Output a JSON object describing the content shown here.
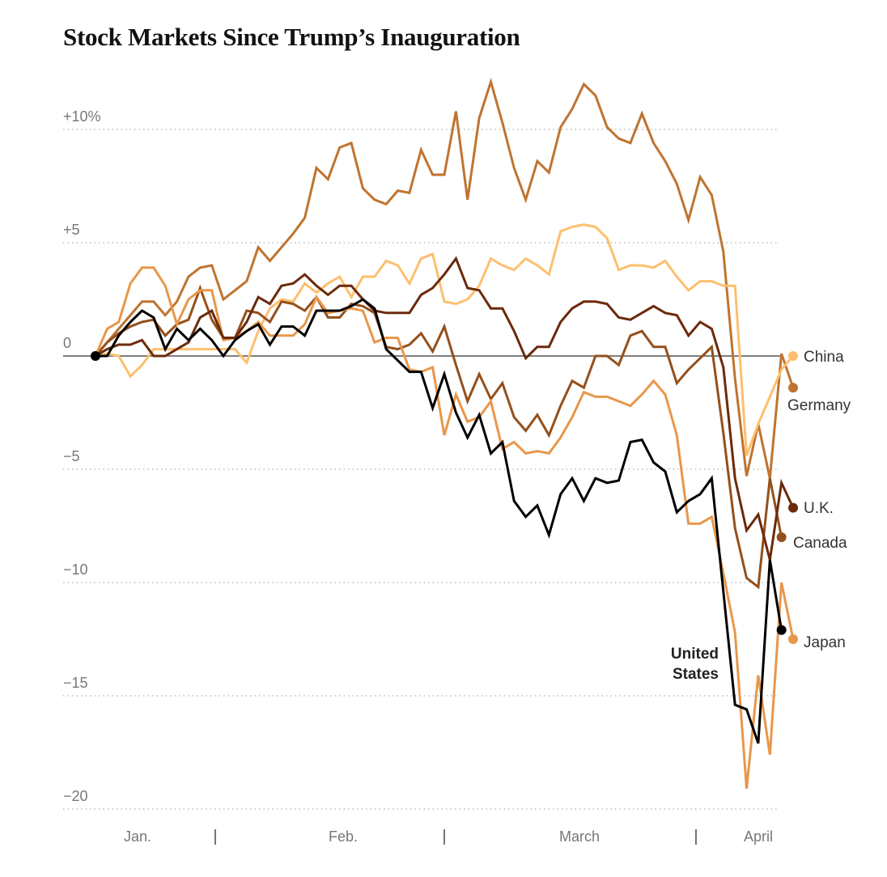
{
  "title": "Stock Markets Since Trump’s Inauguration",
  "chart_data": {
    "type": "line",
    "title": "Stock Markets Since Trump’s Inauguration",
    "xlabel": "",
    "ylabel": "",
    "x_tick_labels": [
      "Jan.",
      "Feb.",
      "March",
      "April"
    ],
    "month_separator": "|",
    "y_ticks": [
      10,
      5,
      0,
      -5,
      -10,
      -15,
      -20
    ],
    "y_tick_labels": [
      "+10%",
      "+5",
      "0",
      "−5",
      "−10",
      "−15",
      "−20"
    ],
    "ylim": [
      -20,
      12
    ],
    "grid": "horizontal dotted",
    "legend": "direct labels at line ends (right)",
    "x_unit": "trading day since inauguration",
    "series": [
      {
        "name": "Germany",
        "color": "#bf7430",
        "values": [
          0,
          0.6,
          1.2,
          1.8,
          2.4,
          2.4,
          1.8,
          2.4,
          3.5,
          3.9,
          4.0,
          2.5,
          2.9,
          3.3,
          4.8,
          4.2,
          4.8,
          5.4,
          6.1,
          8.3,
          7.8,
          9.2,
          9.4,
          7.4,
          6.9,
          6.7,
          7.3,
          7.2,
          9.1,
          8.0,
          8.0,
          10.8,
          6.9,
          10.5,
          12.1,
          10.3,
          8.3,
          6.9,
          8.6,
          8.1,
          10.1,
          10.9,
          12.0,
          11.5,
          10.1,
          9.6,
          9.4,
          10.7,
          9.4,
          8.6,
          7.6,
          6.0,
          7.9,
          7.1,
          4.6,
          -1.0,
          -5.3,
          -3.0,
          -5.4,
          0.1,
          -1.4
        ]
      },
      {
        "name": "China",
        "color": "#fdbf6f",
        "values": [
          0,
          0.1,
          0,
          -0.9,
          -0.4,
          0.3,
          0.3,
          0.3,
          0.3,
          0.3,
          0.3,
          0.3,
          0.3,
          -0.3,
          1.1,
          2.1,
          2.5,
          2.4,
          3.2,
          2.8,
          3.2,
          3.5,
          2.6,
          3.5,
          3.5,
          4.2,
          4.0,
          3.2,
          4.3,
          4.5,
          2.4,
          2.3,
          2.5,
          3.1,
          4.3,
          4.0,
          3.8,
          4.3,
          4.0,
          3.6,
          5.5,
          5.7,
          5.8,
          5.7,
          5.2,
          3.8,
          4.0,
          4.0,
          3.9,
          4.2,
          3.5,
          2.9,
          3.3,
          3.3,
          3.1,
          3.1,
          -4.4,
          -3.0,
          -1.8,
          -0.6,
          0
        ]
      },
      {
        "name": "Canada",
        "color": "#94501c",
        "values": [
          0,
          0.6,
          1.0,
          1.3,
          1.5,
          1.6,
          0.9,
          1.4,
          1.6,
          3.0,
          1.6,
          0.8,
          0.8,
          2.0,
          1.9,
          1.5,
          2.4,
          2.3,
          2.0,
          2.6,
          1.7,
          1.7,
          2.3,
          2.2,
          1.9,
          0.4,
          0.3,
          0.5,
          1.0,
          0.2,
          1.3,
          -0.4,
          -2.0,
          -0.8,
          -1.9,
          -1.2,
          -2.7,
          -3.3,
          -2.6,
          -3.5,
          -2.2,
          -1.1,
          -1.4,
          0,
          0,
          -0.4,
          0.9,
          1.1,
          0.4,
          0.4,
          -1.2,
          -0.6,
          -0.1,
          0.4,
          -3.4,
          -7.6,
          -9.8,
          -10.2,
          -5.4,
          -8.0
        ]
      },
      {
        "name": "Japan",
        "color": "#e8974a",
        "values": [
          0,
          1.2,
          1.5,
          3.2,
          3.9,
          3.9,
          3.1,
          1.4,
          2.5,
          2.9,
          2.9,
          0.7,
          0.8,
          1.1,
          1.5,
          0.9,
          0.9,
          0.9,
          1.4,
          2.6,
          1.9,
          2.0,
          2.1,
          2.0,
          0.6,
          0.8,
          0.8,
          -0.6,
          -0.7,
          -0.5,
          -3.5,
          -1.7,
          -2.9,
          -2.7,
          -2.0,
          -4.1,
          -3.8,
          -4.3,
          -4.2,
          -4.3,
          -3.6,
          -2.7,
          -1.6,
          -1.8,
          -1.8,
          -2.0,
          -2.2,
          -1.7,
          -1.1,
          -1.7,
          -3.5,
          -7.4,
          -7.4,
          -7.1,
          -9.6,
          -12.2,
          -19.1,
          -14.1,
          -17.6,
          -10.0,
          -12.5
        ]
      },
      {
        "name": "U.K.",
        "color": "#6b2a0b",
        "values": [
          0,
          0.3,
          0.5,
          0.5,
          0.7,
          0,
          0,
          0.3,
          0.6,
          1.7,
          2.0,
          0.8,
          0.8,
          1.5,
          2.6,
          2.3,
          3.1,
          3.2,
          3.6,
          3.1,
          2.7,
          3.1,
          3.1,
          2.5,
          2.0,
          1.9,
          1.9,
          1.9,
          2.7,
          3.0,
          3.6,
          4.3,
          3.0,
          2.9,
          2.1,
          2.1,
          1.1,
          -0.1,
          0.4,
          0.4,
          1.5,
          2.1,
          2.4,
          2.4,
          2.3,
          1.7,
          1.6,
          1.9,
          2.2,
          1.9,
          1.8,
          0.9,
          1.5,
          1.2,
          -0.5,
          -5.4,
          -7.7,
          -7.0,
          -9.0,
          -5.6,
          -6.7
        ]
      },
      {
        "name": "United States",
        "color": "#000000",
        "values": [
          0,
          0,
          0.9,
          1.5,
          2.0,
          1.7,
          0.3,
          1.2,
          0.7,
          1.2,
          0.7,
          0,
          0.7,
          1.1,
          1.4,
          0.5,
          1.3,
          1.3,
          0.9,
          2.0,
          2.0,
          2.0,
          2.2,
          2.5,
          2.1,
          0.3,
          -0.2,
          -0.7,
          -0.7,
          -2.3,
          -0.8,
          -2.5,
          -3.6,
          -2.6,
          -4.3,
          -3.8,
          -6.4,
          -7.1,
          -6.6,
          -7.9,
          -6.1,
          -5.4,
          -6.4,
          -5.4,
          -5.6,
          -5.5,
          -3.8,
          -3.7,
          -4.7,
          -5.1,
          -6.9,
          -6.4,
          -6.1,
          -5.4,
          -10.4,
          -15.4,
          -15.6,
          -17.1,
          -9.0,
          -12.1
        ]
      }
    ]
  }
}
